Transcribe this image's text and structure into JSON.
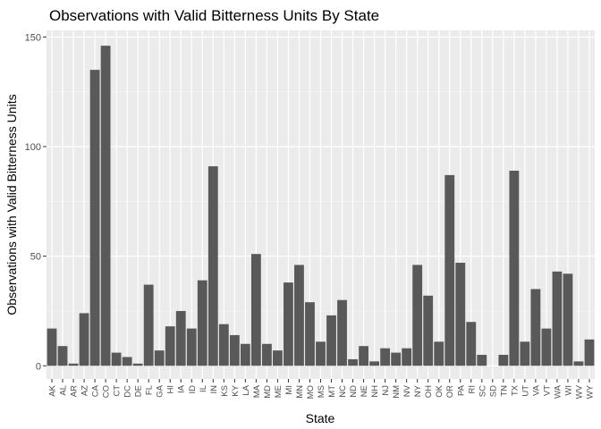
{
  "chart_data": {
    "type": "bar",
    "title": "Observations with Valid Bitterness Units By State",
    "xlabel": "State",
    "ylabel": "Observations with Valid Bitterness Units",
    "ylim": [
      -6,
      153
    ],
    "yticks": [
      0,
      50,
      100,
      150
    ],
    "grid": true,
    "colors": {
      "bar": "#595959",
      "panel": "#ebebeb",
      "grid_major": "#ffffff",
      "grid_minor": "#f5f5f5"
    },
    "categories": [
      "AK",
      "AL",
      "AR",
      "AZ",
      "CA",
      "CO",
      "CT",
      "DC",
      "DE",
      "FL",
      "GA",
      "HI",
      "IA",
      "ID",
      "IL",
      "IN",
      "KS",
      "KY",
      "LA",
      "MA",
      "MD",
      "ME",
      "MI",
      "MN",
      "MO",
      "MS",
      "MT",
      "NC",
      "ND",
      "NE",
      "NH",
      "NJ",
      "NM",
      "NV",
      "NY",
      "OH",
      "OK",
      "OR",
      "PA",
      "RI",
      "SC",
      "SD",
      "TN",
      "TX",
      "UT",
      "VA",
      "VT",
      "WA",
      "WI",
      "WV",
      "WY"
    ],
    "values": [
      17,
      9,
      1,
      24,
      135,
      146,
      6,
      4,
      1,
      37,
      7,
      18,
      25,
      17,
      39,
      91,
      19,
      14,
      10,
      51,
      10,
      7,
      38,
      46,
      29,
      11,
      23,
      30,
      3,
      9,
      2,
      8,
      6,
      8,
      46,
      32,
      11,
      87,
      47,
      20,
      5,
      0,
      5,
      89,
      11,
      35,
      17,
      43,
      42,
      2,
      12
    ]
  }
}
